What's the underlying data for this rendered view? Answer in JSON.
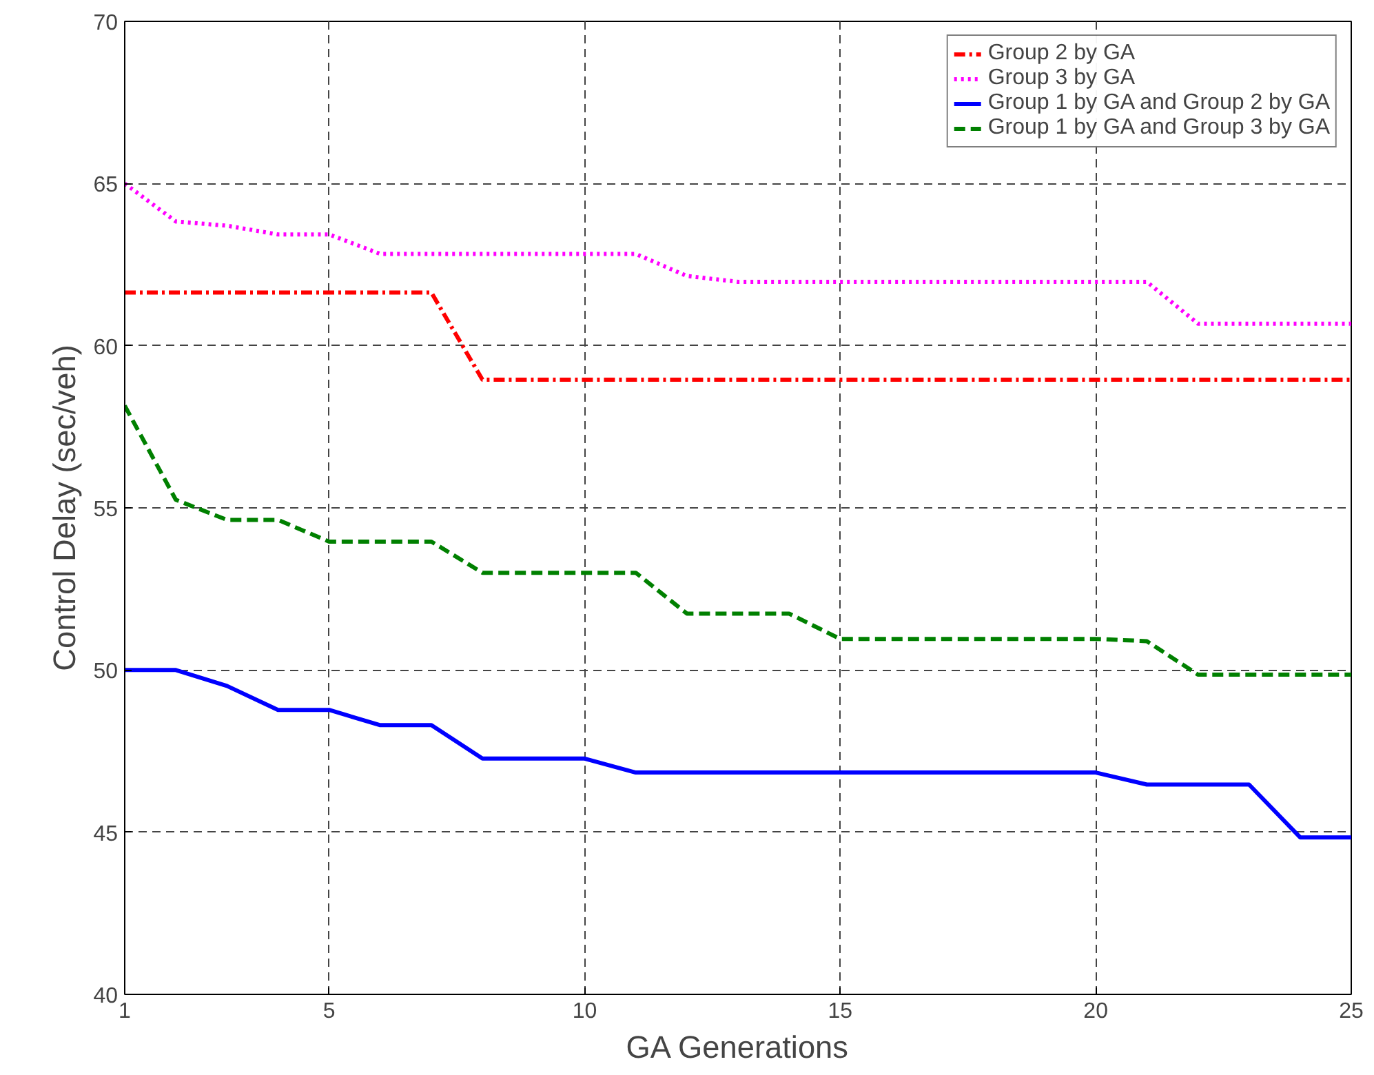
{
  "chart_data": {
    "type": "line",
    "xlabel": "GA Generations",
    "ylabel": "Control Delay (sec/veh)",
    "x": [
      1,
      2,
      3,
      4,
      5,
      6,
      7,
      8,
      9,
      10,
      11,
      12,
      13,
      14,
      15,
      16,
      17,
      18,
      19,
      20,
      21,
      22,
      23,
      24,
      25
    ],
    "xlim": [
      1,
      25
    ],
    "xticks": [
      1,
      5,
      10,
      15,
      20,
      25
    ],
    "ylim": [
      40,
      70
    ],
    "yticks": [
      40,
      45,
      50,
      55,
      60,
      65,
      70
    ],
    "grid": true,
    "legend": "top right",
    "series": [
      {
        "name": "Group 2 by GA",
        "color": "#ff0000",
        "line_style": "dashdot",
        "values": [
          61.64,
          61.64,
          61.64,
          61.64,
          61.64,
          61.64,
          61.64,
          58.95,
          58.95,
          58.95,
          58.95,
          58.95,
          58.95,
          58.95,
          58.95,
          58.95,
          58.95,
          58.95,
          58.95,
          58.95,
          58.95,
          58.95,
          58.95,
          58.95,
          58.95
        ]
      },
      {
        "name": "Group 3 by GA",
        "color": "#ff00ff",
        "line_style": "dotted",
        "values": [
          65.0,
          63.83,
          63.7,
          63.43,
          63.43,
          62.83,
          62.83,
          62.83,
          62.83,
          62.83,
          62.83,
          62.15,
          61.97,
          61.97,
          61.97,
          61.97,
          61.97,
          61.97,
          61.97,
          61.97,
          61.97,
          60.68,
          60.68,
          60.68,
          60.68
        ]
      },
      {
        "name": "Group 1 by GA and Group 2 by GA",
        "color": "#0000ff",
        "line_style": "solid",
        "values": [
          50.0,
          50.0,
          49.51,
          48.77,
          48.77,
          48.3,
          48.3,
          47.27,
          47.27,
          47.27,
          46.84,
          46.84,
          46.84,
          46.84,
          46.84,
          46.84,
          46.84,
          46.84,
          46.84,
          46.84,
          46.47,
          46.47,
          46.47,
          44.84,
          44.84
        ]
      },
      {
        "name": "Group 1 by GA and Group 3 by GA",
        "color": "#008000",
        "line_style": "dashed",
        "values": [
          58.15,
          55.25,
          54.63,
          54.63,
          53.96,
          53.96,
          53.96,
          53.0,
          53.0,
          53.0,
          53.0,
          51.74,
          51.74,
          51.74,
          50.96,
          50.96,
          50.96,
          50.96,
          50.96,
          50.96,
          50.89,
          49.86,
          49.86,
          49.86,
          49.86
        ]
      }
    ]
  }
}
